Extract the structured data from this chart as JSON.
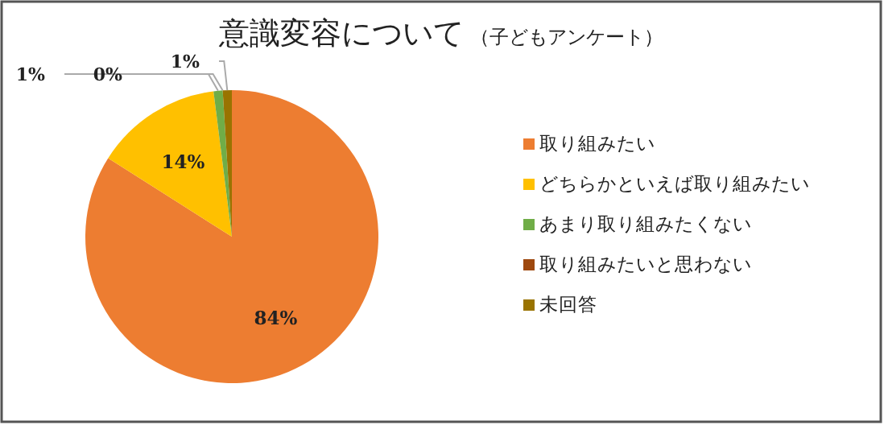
{
  "chart_data": {
    "type": "pie",
    "title": "意識変容について",
    "subtitle": "（子どもアンケート）",
    "categories": [
      "取り組みたい",
      "どちらかといえば取り組みたい",
      "あまり取り組みたくない",
      "取り組みたいと思わない",
      "未回答"
    ],
    "values": [
      84,
      14,
      1,
      0,
      1
    ],
    "colors": [
      "#ed7d31",
      "#ffc000",
      "#70ad47",
      "#9e480e",
      "#997300"
    ],
    "value_labels": [
      "84%",
      "14%",
      "1%",
      "0%",
      "1%"
    ],
    "legend": "right"
  }
}
